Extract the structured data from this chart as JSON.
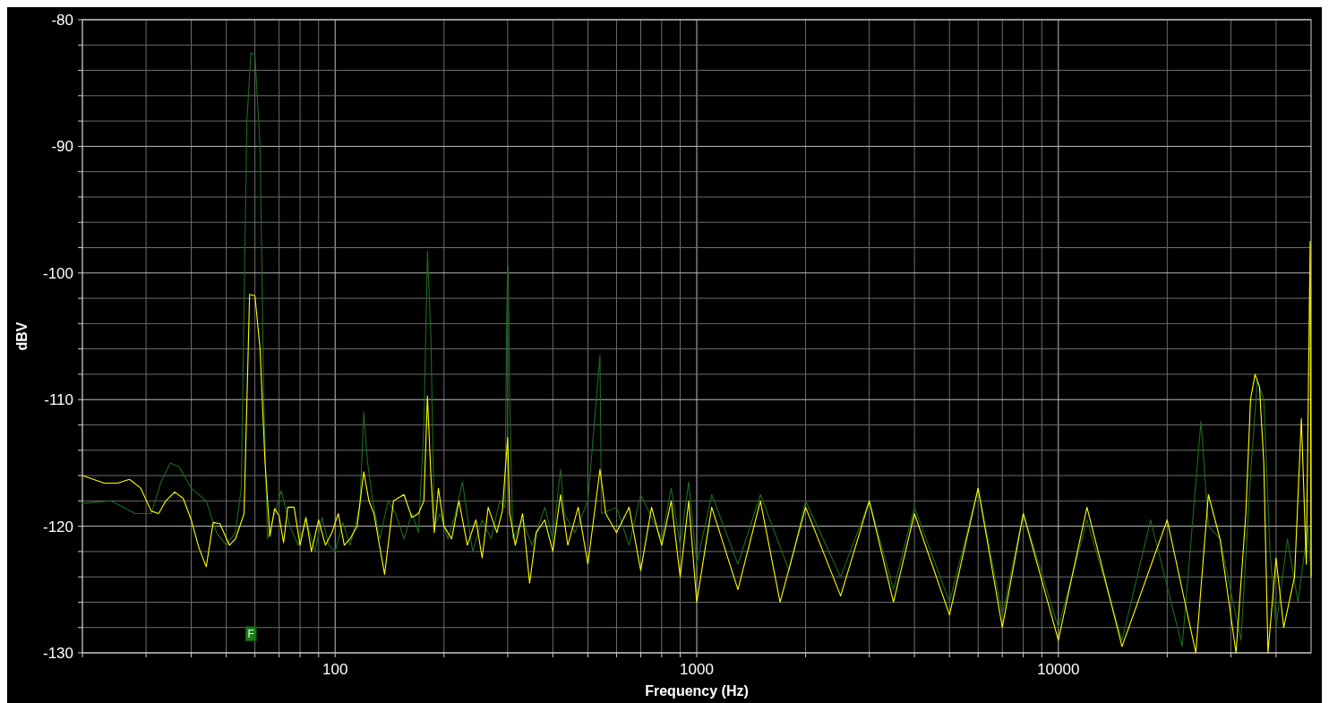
{
  "chart_data": {
    "type": "line",
    "xlabel": "Frequency (Hz)",
    "ylabel": "dBV",
    "log": "x",
    "grid": true,
    "marker": "none",
    "line_style": "solid",
    "xlim": [
      20,
      50000
    ],
    "ylim": [
      -130,
      -80
    ],
    "xticks": [
      {
        "value": 20,
        "label": null
      },
      {
        "value": 30,
        "label": null
      },
      {
        "value": 40,
        "label": null
      },
      {
        "value": 50,
        "label": null
      },
      {
        "value": 60,
        "label": null
      },
      {
        "value": 70,
        "label": null
      },
      {
        "value": 80,
        "label": null
      },
      {
        "value": 90,
        "label": null
      },
      100,
      {
        "value": 200,
        "label": null
      },
      {
        "value": 300,
        "label": null
      },
      {
        "value": 400,
        "label": null
      },
      {
        "value": 500,
        "label": null
      },
      {
        "value": 600,
        "label": null
      },
      {
        "value": 700,
        "label": null
      },
      {
        "value": 800,
        "label": null
      },
      {
        "value": 900,
        "label": null
      },
      1000,
      {
        "value": 2000,
        "label": null
      },
      {
        "value": 3000,
        "label": null
      },
      {
        "value": 4000,
        "label": null
      },
      {
        "value": 5000,
        "label": null
      },
      {
        "value": 6000,
        "label": null
      },
      {
        "value": 7000,
        "label": null
      },
      {
        "value": 8000,
        "label": null
      },
      {
        "value": 9000,
        "label": null
      },
      10000,
      {
        "value": 20000,
        "label": null
      },
      {
        "value": 30000,
        "label": null
      },
      {
        "value": 40000,
        "label": null
      }
    ],
    "yticks": [
      -130,
      {
        "value": -128,
        "label": null
      },
      {
        "value": -126,
        "label": null
      },
      {
        "value": -124,
        "label": null
      },
      {
        "value": -122,
        "label": null
      },
      -120,
      {
        "value": -118,
        "label": null
      },
      {
        "value": -116,
        "label": null
      },
      {
        "value": -114,
        "label": null
      },
      {
        "value": -112,
        "label": null
      },
      -110,
      {
        "value": -108,
        "label": null
      },
      {
        "value": -106,
        "label": null
      },
      {
        "value": -104,
        "label": null
      },
      {
        "value": -102,
        "label": null
      },
      -100,
      {
        "value": -98,
        "label": null
      },
      {
        "value": -96,
        "label": null
      },
      {
        "value": -94,
        "label": null
      },
      {
        "value": -92,
        "label": null
      },
      -90,
      {
        "value": -88,
        "label": null
      },
      {
        "value": -86,
        "label": null
      },
      {
        "value": -84,
        "label": null
      },
      {
        "value": -82,
        "label": null
      },
      -80
    ],
    "annotations": [
      {
        "text": "F",
        "x": 58.5,
        "y": -128.5
      }
    ],
    "series": [
      {
        "color": "#1d6a1d",
        "x": [
          20,
          24,
          28,
          31,
          33,
          35,
          37,
          40,
          44,
          47,
          50,
          53,
          55,
          57,
          58.5,
          60,
          62,
          63.5,
          65,
          68,
          71,
          75,
          79,
          83,
          88,
          92,
          96,
          100,
          105,
          110,
          117,
          120,
          123,
          127,
          133,
          140,
          147,
          155,
          163,
          170,
          176,
          180,
          184,
          188,
          195,
          205,
          215,
          225,
          240,
          255,
          270,
          285,
          295,
          298,
          300,
          301,
          304,
          310,
          330,
          350,
          380,
          400,
          420,
          430,
          460,
          500,
          540,
          545,
          600,
          650,
          700,
          800,
          850,
          900,
          950,
          1000,
          1100,
          1300,
          1500,
          1800,
          2000,
          2500,
          3000,
          3500,
          4000,
          5000,
          6000,
          7000,
          8000,
          10000,
          12000,
          15000,
          18000,
          22000,
          24800,
          26000,
          28000,
          32000,
          34000,
          35500,
          37000,
          38500,
          40000,
          43000,
          46000,
          49000,
          50000
        ],
        "values": [
          -118.2,
          -118,
          -119,
          -119,
          -116.5,
          -115,
          -115.3,
          -117,
          -118,
          -120.5,
          -121.5,
          -120.5,
          -117,
          -88,
          -82.6,
          -82.8,
          -90,
          -110,
          -121,
          -119,
          -117.2,
          -120,
          -121.5,
          -119.5,
          -122,
          -119.3,
          -121.5,
          -122,
          -119.7,
          -121.5,
          -118.5,
          -111,
          -115,
          -118,
          -121,
          -118,
          -119,
          -121,
          -119,
          -120.5,
          -112,
          -98.3,
          -105,
          -120,
          -119,
          -121,
          -119,
          -116.5,
          -122,
          -119.5,
          -121,
          -118,
          -118.5,
          -104,
          -99.5,
          -99.5,
          -110,
          -121,
          -119.5,
          -121.5,
          -118.5,
          -121,
          -115.5,
          -119,
          -120.5,
          -118,
          -106.5,
          -119,
          -118.5,
          -121.5,
          -117.5,
          -121,
          -117,
          -121.5,
          -116.5,
          -123,
          -117.5,
          -123,
          -117.5,
          -123.5,
          -118,
          -124,
          -118,
          -125,
          -118.5,
          -126,
          -117,
          -127,
          -119,
          -128,
          -119.5,
          -129,
          -119.5,
          -129.5,
          -111.7,
          -120,
          -121,
          -129,
          -116,
          -108.5,
          -110,
          -122,
          -128,
          -121,
          -126,
          -120,
          -124
        ]
      },
      {
        "color": "#ffff00",
        "x": [
          20,
          23,
          25,
          27,
          29,
          31,
          32.5,
          34,
          36,
          38,
          40,
          42,
          44,
          46,
          48,
          51,
          53,
          56,
          58,
          60,
          62,
          64,
          66,
          68,
          70,
          72,
          74,
          77,
          80,
          83,
          86,
          90,
          94,
          98,
          102,
          106,
          110,
          115,
          120,
          124,
          128,
          137,
          145,
          155,
          163,
          170,
          176,
          180,
          184,
          188,
          193,
          200,
          210,
          220,
          232,
          245,
          255,
          265,
          280,
          290,
          300,
          304,
          315,
          330,
          345,
          360,
          380,
          400,
          420,
          440,
          470,
          500,
          540,
          560,
          600,
          650,
          700,
          750,
          800,
          850,
          900,
          950,
          1000,
          1100,
          1300,
          1500,
          1700,
          2000,
          2500,
          3000,
          3500,
          4000,
          5000,
          6000,
          7000,
          8000,
          10000,
          12000,
          15000,
          20000,
          24000,
          26000,
          28000,
          31000,
          33000,
          34000,
          35000,
          36000,
          37000,
          38000,
          40000,
          42000,
          45000,
          47000,
          48500,
          49700,
          50000
        ],
        "values": [
          -116,
          -116.6,
          -116.6,
          -116.3,
          -117,
          -118.8,
          -119,
          -118,
          -117.3,
          -117.8,
          -119.5,
          -121.7,
          -123.2,
          -119.7,
          -119.8,
          -121.5,
          -121,
          -119,
          -101.7,
          -101.8,
          -106,
          -115,
          -120.8,
          -118.6,
          -119.2,
          -121.3,
          -118.5,
          -118.5,
          -121.5,
          -119.3,
          -122,
          -119.5,
          -121.5,
          -120.5,
          -119,
          -121.5,
          -121,
          -120,
          -115.7,
          -118,
          -119,
          -123.8,
          -118,
          -117.5,
          -119.3,
          -119,
          -118,
          -109.7,
          -116,
          -120.5,
          -117,
          -120,
          -121,
          -118,
          -121.5,
          -119.5,
          -122.5,
          -118.5,
          -120.5,
          -118.8,
          -113,
          -119,
          -121.5,
          -119,
          -124.5,
          -120.5,
          -119.5,
          -122,
          -117.5,
          -121.5,
          -118.5,
          -123,
          -115.5,
          -119,
          -120.5,
          -118.5,
          -123.5,
          -118.5,
          -121.5,
          -118,
          -124,
          -118,
          -126,
          -118.5,
          -125,
          -118,
          -126,
          -118.5,
          -125.5,
          -118,
          -126,
          -119,
          -127,
          -117,
          -128,
          -119,
          -129,
          -118.5,
          -129.5,
          -119.5,
          -130,
          -117.5,
          -121,
          -130,
          -119,
          -110,
          -108,
          -109,
          -115,
          -130,
          -122.5,
          -128,
          -124,
          -111.5,
          -123,
          -97.5,
          -124
        ]
      }
    ]
  }
}
